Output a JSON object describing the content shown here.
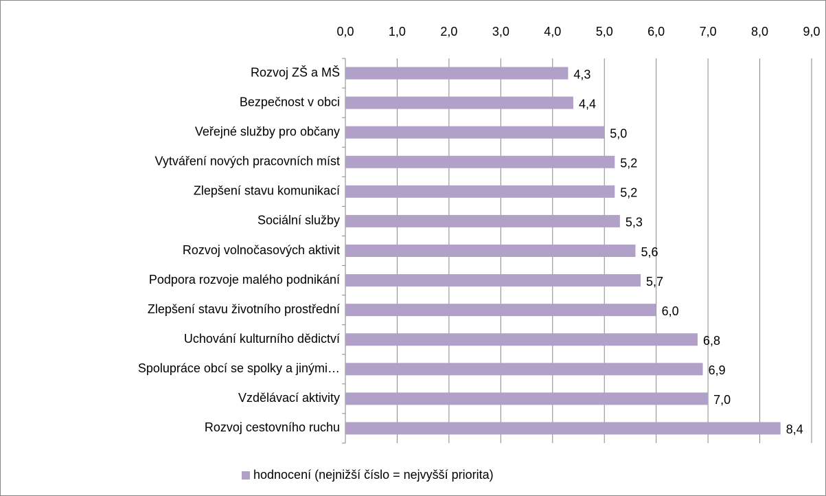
{
  "chart_data": {
    "type": "bar",
    "orientation": "horizontal",
    "categories": [
      "Rozvoj ZŠ a MŠ",
      "Bezpečnost v obci",
      "Veřejné služby pro občany",
      "Vytváření nových pracovních míst",
      "Zlepšení stavu komunikací",
      "Sociální služby",
      "Rozvoj volnočasových aktivit",
      "Podpora rozvoje malého podnikání",
      "Zlepšení stavu životního prostřední",
      "Uchování kulturního dědictví",
      "Spolupráce obcí se spolky a jinými…",
      "Vzdělávací aktivity",
      "Rozvoj cestovního ruchu"
    ],
    "series": [
      {
        "name": "hodnocení (nejnižší číslo = nejvyšší priorita)",
        "color": "#b1a0c7",
        "values": [
          4.3,
          4.4,
          5.0,
          5.2,
          5.2,
          5.3,
          5.6,
          5.7,
          6.0,
          6.8,
          6.9,
          7.0,
          8.4
        ],
        "value_labels": [
          "4,3",
          "4,4",
          "5,0",
          "5,2",
          "5,2",
          "5,3",
          "5,6",
          "5,7",
          "6,0",
          "6,8",
          "6,9",
          "7,0",
          "8,4"
        ]
      }
    ],
    "xlim": [
      0,
      9
    ],
    "xticks": [
      {
        "value": 0,
        "label": "0,0"
      },
      {
        "value": 1,
        "label": "1,0"
      },
      {
        "value": 2,
        "label": "2,0"
      },
      {
        "value": 3,
        "label": "3,0"
      },
      {
        "value": 4,
        "label": "4,0"
      },
      {
        "value": 5,
        "label": "5,0"
      },
      {
        "value": 6,
        "label": "6,0"
      },
      {
        "value": 7,
        "label": "7,0"
      },
      {
        "value": 8,
        "label": "8,0"
      },
      {
        "value": 9,
        "label": "9,0"
      }
    ],
    "grid": true,
    "legend": "bottom"
  }
}
